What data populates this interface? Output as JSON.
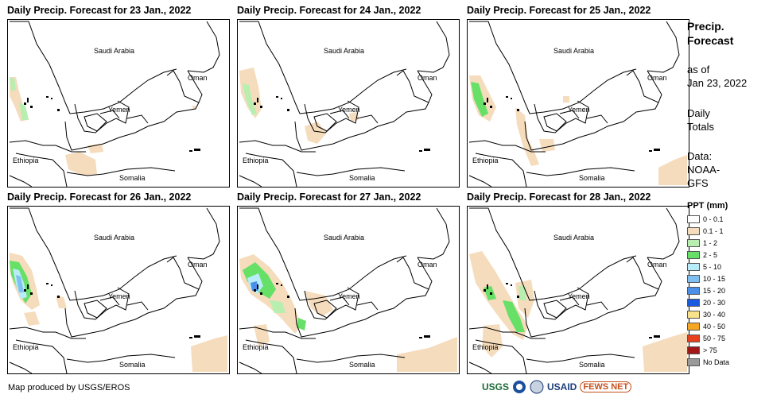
{
  "panels": [
    {
      "title": "Daily Precip. Forecast for 23 Jan., 2022"
    },
    {
      "title": "Daily Precip. Forecast for 24 Jan., 2022"
    },
    {
      "title": "Daily Precip. Forecast for 25 Jan., 2022"
    },
    {
      "title": "Daily Precip. Forecast for 26 Jan., 2022"
    },
    {
      "title": "Daily Precip. Forecast for 27 Jan., 2022"
    },
    {
      "title": "Daily Precip. Forecast for 28 Jan., 2022"
    }
  ],
  "places": {
    "saudi_arabia": "Saudi Arabia",
    "oman": "Oman",
    "yemen": "Yemen",
    "ethiopia": "Ethiopia",
    "somalia": "Somalia"
  },
  "sidebar": {
    "title_line1": "Precip.",
    "title_line2": "Forecast",
    "asof_line1": "as of",
    "asof_line2": "Jan 23, 2022",
    "daily_line1": "Daily",
    "daily_line2": "Totals",
    "data_line1": "Data:",
    "data_line2": "NOAA-",
    "data_line3": "GFS"
  },
  "legend": {
    "title": "PPT (mm)",
    "items": [
      {
        "label": "0 - 0.1",
        "color": "#ffffff"
      },
      {
        "label": "0.1 - 1",
        "color": "#f5dcbc"
      },
      {
        "label": "1 - 2",
        "color": "#b8efb0"
      },
      {
        "label": "2 - 5",
        "color": "#66e066"
      },
      {
        "label": "5 - 10",
        "color": "#b8ecf8"
      },
      {
        "label": "10 - 15",
        "color": "#80c0f0"
      },
      {
        "label": "15 - 20",
        "color": "#4a90e8"
      },
      {
        "label": "20 - 30",
        "color": "#1a5adf"
      },
      {
        "label": "30 - 40",
        "color": "#f8e28a"
      },
      {
        "label": "40 - 50",
        "color": "#f5a623"
      },
      {
        "label": "50 - 75",
        "color": "#e8401c"
      },
      {
        "label": "> 75",
        "color": "#a01818"
      },
      {
        "label": "No Data",
        "color": "#9a9a9a"
      }
    ]
  },
  "footer": {
    "credit": "Map produced by USGS/EROS",
    "logos": [
      "USGS",
      "NOAA",
      "USAID",
      "FEWS NET"
    ]
  }
}
